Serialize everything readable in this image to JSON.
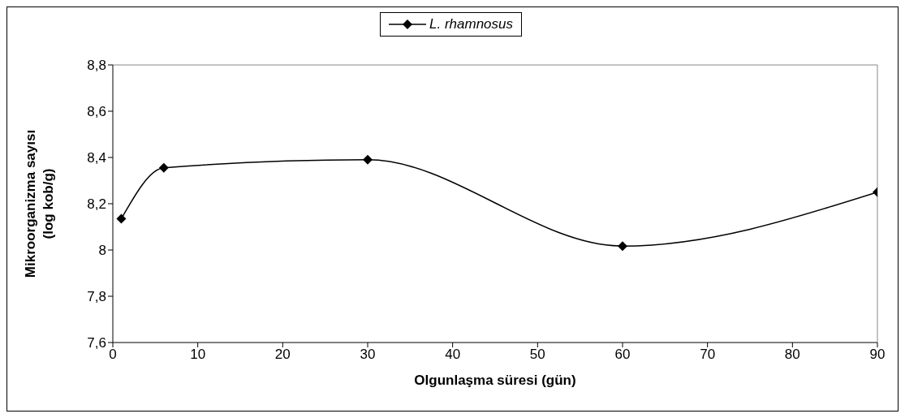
{
  "chart_data": {
    "type": "line",
    "xlabel": "Olgunlaşma süresi (gün)",
    "ylabel": "Mikroorganizma sayısı\n(log kob/g)",
    "x": [
      1,
      6,
      30,
      60,
      90
    ],
    "series": [
      {
        "name": "L. rhamnosus",
        "color": "#000000",
        "values": [
          8.135,
          8.355,
          8.39,
          8.017,
          8.25
        ]
      }
    ],
    "xlim": [
      0,
      90
    ],
    "xticks": [
      0,
      10,
      20,
      30,
      40,
      50,
      60,
      70,
      80,
      90
    ],
    "ylim": [
      7.6,
      8.8
    ],
    "yticks": [
      {
        "value": 7.6,
        "label": "7,6"
      },
      {
        "value": 7.8,
        "label": "7,8"
      },
      {
        "value": 8,
        "label": "8"
      },
      {
        "value": 8.2,
        "label": "8,2"
      },
      {
        "value": 8.4,
        "label": "8,4"
      },
      {
        "value": 8.6,
        "label": "8,6"
      },
      {
        "value": 8.8,
        "label": "8,8"
      }
    ],
    "grid": false,
    "legend": "top",
    "marker": "diamond",
    "line_style": "solid"
  }
}
